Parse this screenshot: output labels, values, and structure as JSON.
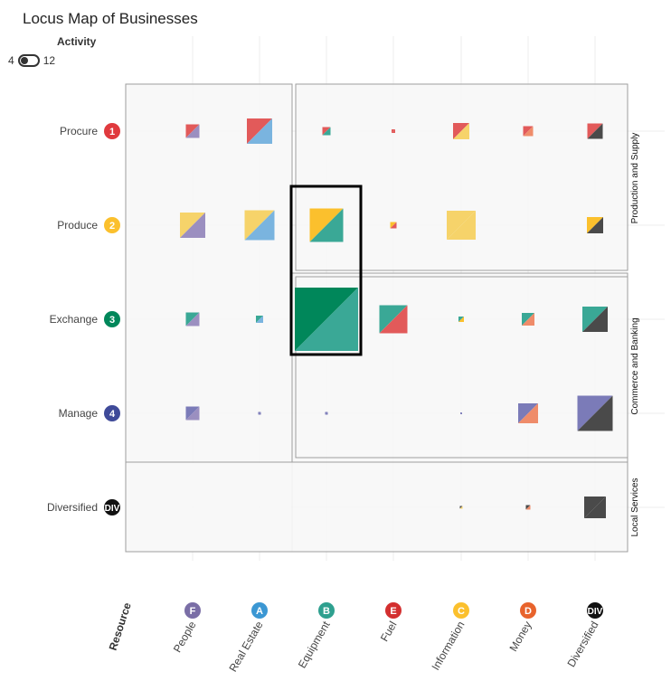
{
  "header": {
    "title": "Locus Map of Businesses",
    "activity_label": "Activity",
    "toggle_min": "4",
    "toggle_max": "12"
  },
  "chart_data": {
    "type": "heatmap",
    "title": "Locus Map of Businesses",
    "xlabel": "Resource",
    "ylabel": "",
    "grid": true,
    "rows": [
      {
        "label": "Procure",
        "badge": "1",
        "color": "#e03a3e"
      },
      {
        "label": "Produce",
        "badge": "2",
        "color": "#fbc02d"
      },
      {
        "label": "Exchange",
        "badge": "3",
        "color": "#00875a"
      },
      {
        "label": "Manage",
        "badge": "4",
        "color": "#3f4a99"
      },
      {
        "label": "Diversified",
        "badge": "DIV",
        "color": "#111111"
      }
    ],
    "columns": [
      {
        "label": "People",
        "badge": "F",
        "color": "#7a6ea6"
      },
      {
        "label": "Real Estate",
        "badge": "A",
        "color": "#3b97d3"
      },
      {
        "label": "Equipment",
        "badge": "B",
        "color": "#2ea08f"
      },
      {
        "label": "Fuel",
        "badge": "E",
        "color": "#d32f2f"
      },
      {
        "label": "Information",
        "badge": "C",
        "color": "#fbc02d"
      },
      {
        "label": "Money",
        "badge": "D",
        "color": "#e8632c"
      },
      {
        "label": "Diversified",
        "badge": "DIV",
        "color": "#111111"
      }
    ],
    "regions": [
      "Production and Supply",
      "Commerce and Banking",
      "Local Services"
    ],
    "cells": [
      {
        "row": 0,
        "col": 0,
        "size": 15,
        "c1": "#e25a5a",
        "c2": "#9b8fc0"
      },
      {
        "row": 0,
        "col": 1,
        "size": 28,
        "c1": "#e25a5a",
        "c2": "#7ab4df"
      },
      {
        "row": 0,
        "col": 2,
        "size": 9,
        "c1": "#e25a5a",
        "c2": "#3aa896"
      },
      {
        "row": 0,
        "col": 3,
        "size": 4,
        "c1": "#e25a5a",
        "c2": "#e25a5a"
      },
      {
        "row": 0,
        "col": 4,
        "size": 18,
        "c1": "#e25a5a",
        "c2": "#f6d36a"
      },
      {
        "row": 0,
        "col": 5,
        "size": 11,
        "c1": "#e25a5a",
        "c2": "#ef8c6a"
      },
      {
        "row": 0,
        "col": 6,
        "size": 17,
        "c1": "#e25a5a",
        "c2": "#4a4a4a"
      },
      {
        "row": 1,
        "col": 0,
        "size": 28,
        "c1": "#f6d36a",
        "c2": "#9b8fc0"
      },
      {
        "row": 1,
        "col": 1,
        "size": 33,
        "c1": "#f6d36a",
        "c2": "#7ab4df"
      },
      {
        "row": 1,
        "col": 2,
        "size": 37,
        "c1": "#fbc02d",
        "c2": "#3aa896"
      },
      {
        "row": 1,
        "col": 3,
        "size": 7,
        "c1": "#fbc02d",
        "c2": "#e25a5a"
      },
      {
        "row": 1,
        "col": 4,
        "size": 32,
        "c1": "#f6d36a",
        "c2": "#f6d36a"
      },
      {
        "row": 1,
        "col": 6,
        "size": 18,
        "c1": "#fbc02d",
        "c2": "#4a4a4a"
      },
      {
        "row": 2,
        "col": 0,
        "size": 15,
        "c1": "#3aa896",
        "c2": "#9b8fc0"
      },
      {
        "row": 2,
        "col": 1,
        "size": 8,
        "c1": "#3aa896",
        "c2": "#7ab4df"
      },
      {
        "row": 2,
        "col": 2,
        "size": 70,
        "c1": "#00875a",
        "c2": "#3aa896"
      },
      {
        "row": 2,
        "col": 3,
        "size": 31,
        "c1": "#3aa896",
        "c2": "#e25a5a"
      },
      {
        "row": 2,
        "col": 4,
        "size": 6,
        "c1": "#3aa896",
        "c2": "#fbc02d"
      },
      {
        "row": 2,
        "col": 5,
        "size": 14,
        "c1": "#3aa896",
        "c2": "#ef8c6a"
      },
      {
        "row": 2,
        "col": 6,
        "size": 28,
        "c1": "#3aa896",
        "c2": "#4a4a4a"
      },
      {
        "row": 3,
        "col": 0,
        "size": 15,
        "c1": "#7b7bb8",
        "c2": "#9b8fc0"
      },
      {
        "row": 3,
        "col": 1,
        "size": 3,
        "c1": "#7b7bb8",
        "c2": "#7b7bb8"
      },
      {
        "row": 3,
        "col": 2,
        "size": 3,
        "c1": "#7b7bb8",
        "c2": "#7b7bb8"
      },
      {
        "row": 3,
        "col": 4,
        "size": 2,
        "c1": "#7b7bb8",
        "c2": "#7b7bb8"
      },
      {
        "row": 3,
        "col": 5,
        "size": 22,
        "c1": "#7b7bb8",
        "c2": "#ef8c6a"
      },
      {
        "row": 3,
        "col": 6,
        "size": 39,
        "c1": "#7b7bb8",
        "c2": "#4a4a4a"
      },
      {
        "row": 4,
        "col": 4,
        "size": 3,
        "c1": "#4a4a4a",
        "c2": "#f6d36a"
      },
      {
        "row": 4,
        "col": 5,
        "size": 5,
        "c1": "#4a4a4a",
        "c2": "#ef8c6a"
      },
      {
        "row": 4,
        "col": 6,
        "size": 24,
        "c1": "#4a4a4a",
        "c2": "#4a4a4a"
      }
    ]
  }
}
